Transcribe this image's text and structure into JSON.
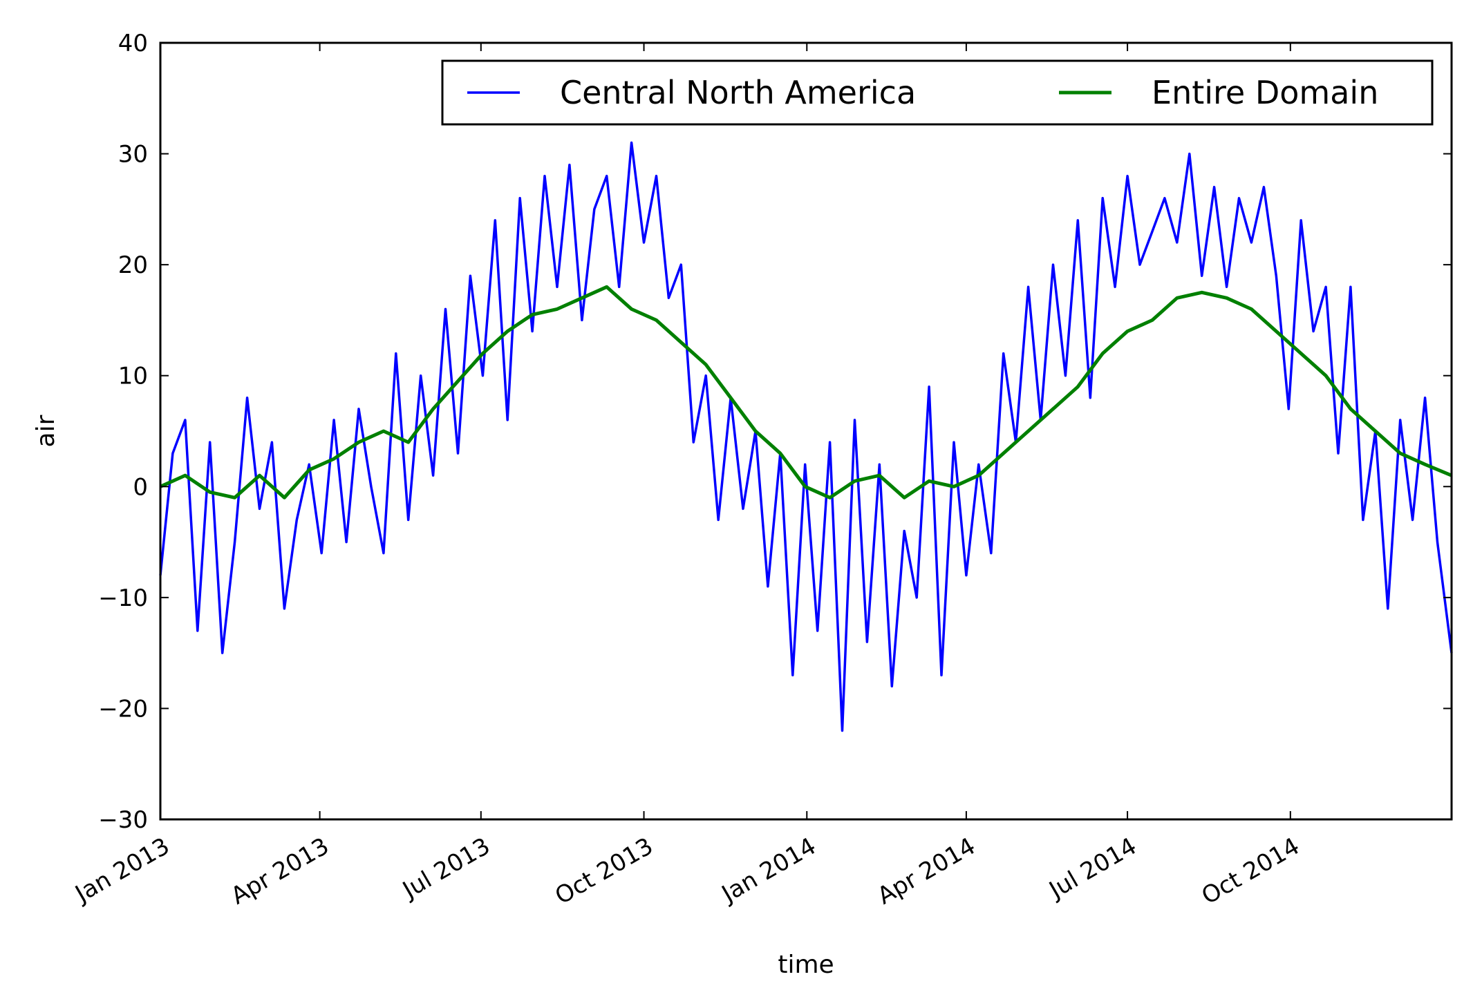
{
  "chart_data": {
    "type": "line",
    "xlabel": "time",
    "ylabel": "air",
    "ylim": [
      -30,
      40
    ],
    "xlim": [
      "2013-01-01",
      "2014-12-31"
    ],
    "y_ticks": [
      {
        "value": -30,
        "label": "−30"
      },
      {
        "value": -20,
        "label": "−20"
      },
      {
        "value": -10,
        "label": "−10"
      },
      {
        "value": 0,
        "label": "0"
      },
      {
        "value": 10,
        "label": "10"
      },
      {
        "value": 20,
        "label": "20"
      },
      {
        "value": 30,
        "label": "30"
      },
      {
        "value": 40,
        "label": "40"
      }
    ],
    "x_ticks": [
      {
        "value": "2013-01-01",
        "label": "Jan 2013"
      },
      {
        "value": "2013-04-01",
        "label": "Apr 2013"
      },
      {
        "value": "2013-07-01",
        "label": "Jul 2013"
      },
      {
        "value": "2013-10-01",
        "label": "Oct 2013"
      },
      {
        "value": "2014-01-01",
        "label": "Jan 2014"
      },
      {
        "value": "2014-04-01",
        "label": "Apr 2014"
      },
      {
        "value": "2014-07-01",
        "label": "Jul 2014"
      },
      {
        "value": "2014-10-01",
        "label": "Oct 2014"
      }
    ],
    "grid": false,
    "legend": {
      "placement": "top-right",
      "columns": 2
    },
    "series": [
      {
        "name": "Central North America",
        "color": "#0000ff",
        "x": [
          "2013-01-01",
          "2013-01-08",
          "2013-01-15",
          "2013-01-22",
          "2013-01-29",
          "2013-02-05",
          "2013-02-12",
          "2013-02-19",
          "2013-02-26",
          "2013-03-05",
          "2013-03-12",
          "2013-03-19",
          "2013-03-26",
          "2013-04-02",
          "2013-04-09",
          "2013-04-16",
          "2013-04-23",
          "2013-04-30",
          "2013-05-07",
          "2013-05-14",
          "2013-05-21",
          "2013-05-28",
          "2013-06-04",
          "2013-06-11",
          "2013-06-18",
          "2013-06-25",
          "2013-07-02",
          "2013-07-09",
          "2013-07-16",
          "2013-07-23",
          "2013-07-30",
          "2013-08-06",
          "2013-08-13",
          "2013-08-20",
          "2013-08-27",
          "2013-09-03",
          "2013-09-10",
          "2013-09-17",
          "2013-09-24",
          "2013-10-01",
          "2013-10-08",
          "2013-10-15",
          "2013-10-22",
          "2013-10-29",
          "2013-11-05",
          "2013-11-12",
          "2013-11-19",
          "2013-11-26",
          "2013-12-03",
          "2013-12-10",
          "2013-12-17",
          "2013-12-24",
          "2013-12-31",
          "2014-01-07",
          "2014-01-14",
          "2014-01-21",
          "2014-01-28",
          "2014-02-04",
          "2014-02-11",
          "2014-02-18",
          "2014-02-25",
          "2014-03-04",
          "2014-03-11",
          "2014-03-18",
          "2014-03-25",
          "2014-04-01",
          "2014-04-08",
          "2014-04-15",
          "2014-04-22",
          "2014-04-29",
          "2014-05-06",
          "2014-05-13",
          "2014-05-20",
          "2014-05-27",
          "2014-06-03",
          "2014-06-10",
          "2014-06-17",
          "2014-06-24",
          "2014-07-01",
          "2014-07-08",
          "2014-07-15",
          "2014-07-22",
          "2014-07-29",
          "2014-08-05",
          "2014-08-12",
          "2014-08-19",
          "2014-08-26",
          "2014-09-02",
          "2014-09-09",
          "2014-09-16",
          "2014-09-23",
          "2014-09-30",
          "2014-10-07",
          "2014-10-14",
          "2014-10-21",
          "2014-10-28",
          "2014-11-04",
          "2014-11-11",
          "2014-11-18",
          "2014-11-25",
          "2014-12-02",
          "2014-12-09",
          "2014-12-16",
          "2014-12-23",
          "2014-12-31"
        ],
        "y": [
          -8,
          3,
          6,
          -13,
          4,
          -15,
          -5,
          8,
          -2,
          4,
          -11,
          -3,
          2,
          -6,
          6,
          -5,
          7,
          0,
          -6,
          12,
          -3,
          10,
          1,
          16,
          3,
          19,
          10,
          24,
          6,
          26,
          14,
          28,
          18,
          29,
          15,
          25,
          28,
          18,
          31,
          22,
          28,
          17,
          20,
          4,
          10,
          -3,
          8,
          -2,
          5,
          -9,
          3,
          -17,
          2,
          -13,
          4,
          -22,
          6,
          -14,
          2,
          -18,
          -4,
          -10,
          9,
          -17,
          4,
          -8,
          2,
          -6,
          12,
          4,
          18,
          6,
          20,
          10,
          24,
          8,
          26,
          18,
          28,
          20,
          23,
          26,
          22,
          30,
          19,
          27,
          18,
          26,
          22,
          27,
          19,
          7,
          24,
          14,
          18,
          3,
          18,
          -3,
          5,
          -11,
          6,
          -3,
          8,
          -5,
          -15
        ]
      },
      {
        "name": "Entire Domain",
        "color": "#008000",
        "x": [
          "2013-01-01",
          "2013-01-15",
          "2013-01-29",
          "2013-02-12",
          "2013-02-26",
          "2013-03-12",
          "2013-03-26",
          "2013-04-09",
          "2013-04-23",
          "2013-05-07",
          "2013-05-21",
          "2013-06-04",
          "2013-06-18",
          "2013-07-02",
          "2013-07-16",
          "2013-07-30",
          "2013-08-13",
          "2013-08-27",
          "2013-09-10",
          "2013-09-24",
          "2013-10-08",
          "2013-10-22",
          "2013-11-05",
          "2013-11-19",
          "2013-12-03",
          "2013-12-17",
          "2013-12-31",
          "2014-01-14",
          "2014-01-28",
          "2014-02-11",
          "2014-02-25",
          "2014-03-11",
          "2014-03-25",
          "2014-04-08",
          "2014-04-22",
          "2014-05-06",
          "2014-05-20",
          "2014-06-03",
          "2014-06-17",
          "2014-07-01",
          "2014-07-15",
          "2014-07-29",
          "2014-08-12",
          "2014-08-26",
          "2014-09-09",
          "2014-09-23",
          "2014-10-07",
          "2014-10-21",
          "2014-11-04",
          "2014-11-18",
          "2014-12-02",
          "2014-12-16",
          "2014-12-31"
        ],
        "y": [
          0,
          1,
          -0.5,
          -1,
          1,
          -1,
          1.5,
          2.5,
          4,
          5,
          4,
          7,
          9.5,
          12,
          14,
          15.5,
          16,
          17,
          18,
          16,
          15,
          13,
          11,
          8,
          5,
          3,
          0,
          -1,
          0.5,
          1,
          -1,
          0.5,
          0,
          1,
          3,
          5,
          7,
          9,
          12,
          14,
          15,
          17,
          17.5,
          17,
          16,
          14,
          12,
          10,
          7,
          5,
          3,
          2,
          1
        ]
      }
    ]
  }
}
